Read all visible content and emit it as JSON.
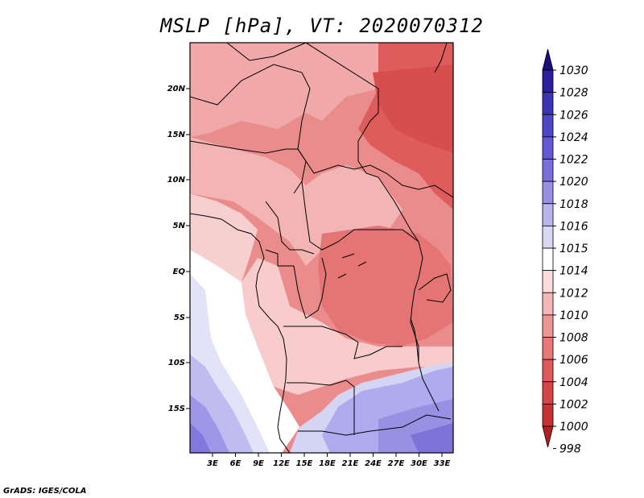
{
  "title": "MSLP [hPa], VT: 2020070312",
  "credit": "GrADS: IGES/COLA",
  "lat_labels": [
    "20N",
    "15N",
    "10N",
    "5N",
    "EQ",
    "5S",
    "10S",
    "15S"
  ],
  "lon_labels": [
    "3E",
    "6E",
    "9E",
    "12E",
    "15E",
    "18E",
    "21E",
    "24E",
    "27E",
    "30E",
    "33E"
  ],
  "colorbar": {
    "levels": [
      1030,
      1028,
      1026,
      1024,
      1022,
      1020,
      1018,
      1016,
      1015,
      1014,
      1012,
      1010,
      1008,
      1006,
      1004,
      1002,
      1000,
      998
    ],
    "colors": [
      "#1a0e82",
      "#2a1f9e",
      "#3c32b4",
      "#4e46c6",
      "#6459d4",
      "#7a70dc",
      "#968fe4",
      "#b8b4ee",
      "#d8d8f4",
      "#ffffff",
      "#fbdcdc",
      "#f5b6b6",
      "#ee9696",
      "#e77878",
      "#de5a5a",
      "#d44646",
      "#c73232",
      "#b51f1f"
    ]
  },
  "chart_data": {
    "type": "heatmap",
    "title": "MSLP [hPa], VT: 2020070312",
    "variable": "MSLP",
    "units": "hPa",
    "valid_time": "2020070312",
    "x_range_deg_e": [
      0,
      35
    ],
    "y_range_deg_n": [
      -19,
      25
    ],
    "contour_levels": [
      998,
      1000,
      1002,
      1004,
      1006,
      1008,
      1010,
      1012,
      1014,
      1015,
      1016,
      1018,
      1020,
      1022,
      1024,
      1026,
      1028,
      1030
    ]
  }
}
